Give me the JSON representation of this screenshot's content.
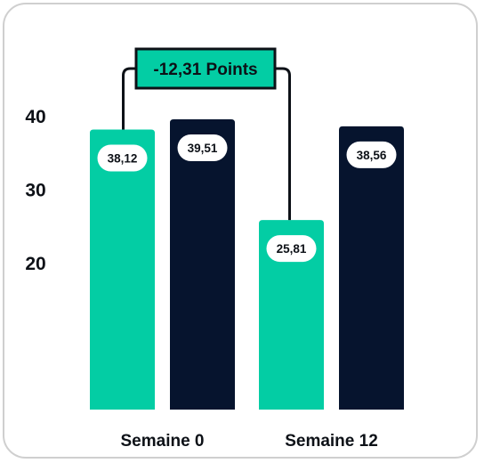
{
  "chart_data": {
    "type": "bar",
    "categories": [
      "Semaine 0",
      "Semaine 12"
    ],
    "series": [
      {
        "values": [
          38.12,
          25.81
        ],
        "labels": [
          "38,12",
          "25,81"
        ],
        "color": "#03cda4"
      },
      {
        "values": [
          39.51,
          38.56
        ],
        "labels": [
          "39,51",
          "38,56"
        ],
        "color": "#06142e"
      }
    ],
    "yticks": [
      {
        "value": 20,
        "label": "20"
      },
      {
        "value": 30,
        "label": "30"
      },
      {
        "value": 40,
        "label": "40"
      }
    ],
    "ylim": [
      0,
      42
    ],
    "grid": false,
    "annotation": {
      "text": "-12,31 Points",
      "from": {
        "series": 0,
        "category": 0
      },
      "to": {
        "series": 0,
        "category": 1
      },
      "fill": "#03cda4",
      "border": "#0d1117"
    },
    "label_bg": "#ffffff",
    "text_color": "#0d1117",
    "card_border": "#cfcfcf"
  }
}
